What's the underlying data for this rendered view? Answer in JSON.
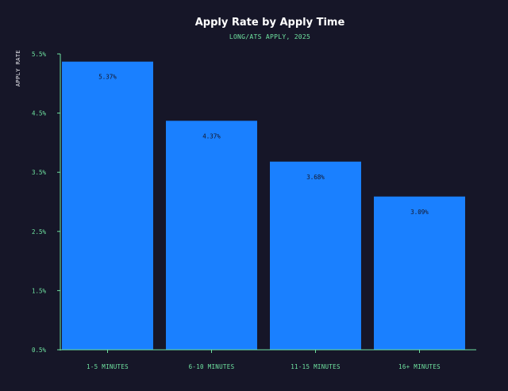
{
  "chart_data": {
    "type": "bar",
    "title": "Apply Rate by Apply Time",
    "subtitle": "LONG/ATS APPLY, 2025",
    "ylabel": "APPLY RATE",
    "xlabel": "",
    "categories": [
      "1-5 MINUTES",
      "6-10 MINUTES",
      "11-15 MINUTES",
      "16+ MINUTES"
    ],
    "values": [
      5.37,
      4.37,
      3.68,
      3.09
    ],
    "data_labels": [
      "5.37%",
      "4.37%",
      "3.68%",
      "3.09%"
    ],
    "y_ticks": [
      "0.5%",
      "1.5%",
      "2.5%",
      "3.5%",
      "4.5%",
      "5.5%"
    ],
    "ylim": [
      0.5,
      5.5
    ],
    "grid": false,
    "colors": {
      "background": "#161628",
      "bar": "#1a80ff",
      "axis": "#6fe3a0",
      "title": "#ffffff",
      "subtitle": "#6fe3a0",
      "data_label": "#161628"
    }
  }
}
